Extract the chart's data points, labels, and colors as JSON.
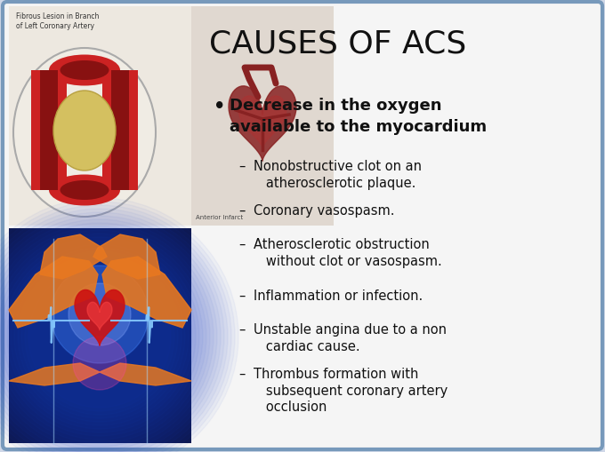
{
  "title": "CAUSES OF ACS",
  "title_fontsize": 26,
  "title_color": "#111111",
  "background_color": "#d0d8e8",
  "slide_bg": "#f5f5f5",
  "border_color": "#7799bb",
  "bullet_header": "Decrease in the oxygen\navailable to the myocardium",
  "bullet_header_fontsize": 13,
  "sub_bullets": [
    "Nonobstructive clot on an\n   atherosclerotic plaque.",
    "Coronary vasospasm.",
    "Atherosclerotic obstruction\n   without clot or vasospasm.",
    "Inflammation or infection.",
    "Unstable angina due to a non\n   cardiac cause.",
    "Thrombus formation with\n   subsequent coronary artery\n   occlusion"
  ],
  "sub_bullet_fontsize": 10.5,
  "text_color": "#111111",
  "top_img_bg": "#e8ddd0",
  "bottom_img_bg": "#0d1850",
  "artery_color": "#cc2222",
  "plaque_color": "#d4c060",
  "hand_color": "#e87820",
  "ecg_color": "#88ccff",
  "heart_glow_color": "#cc2222"
}
